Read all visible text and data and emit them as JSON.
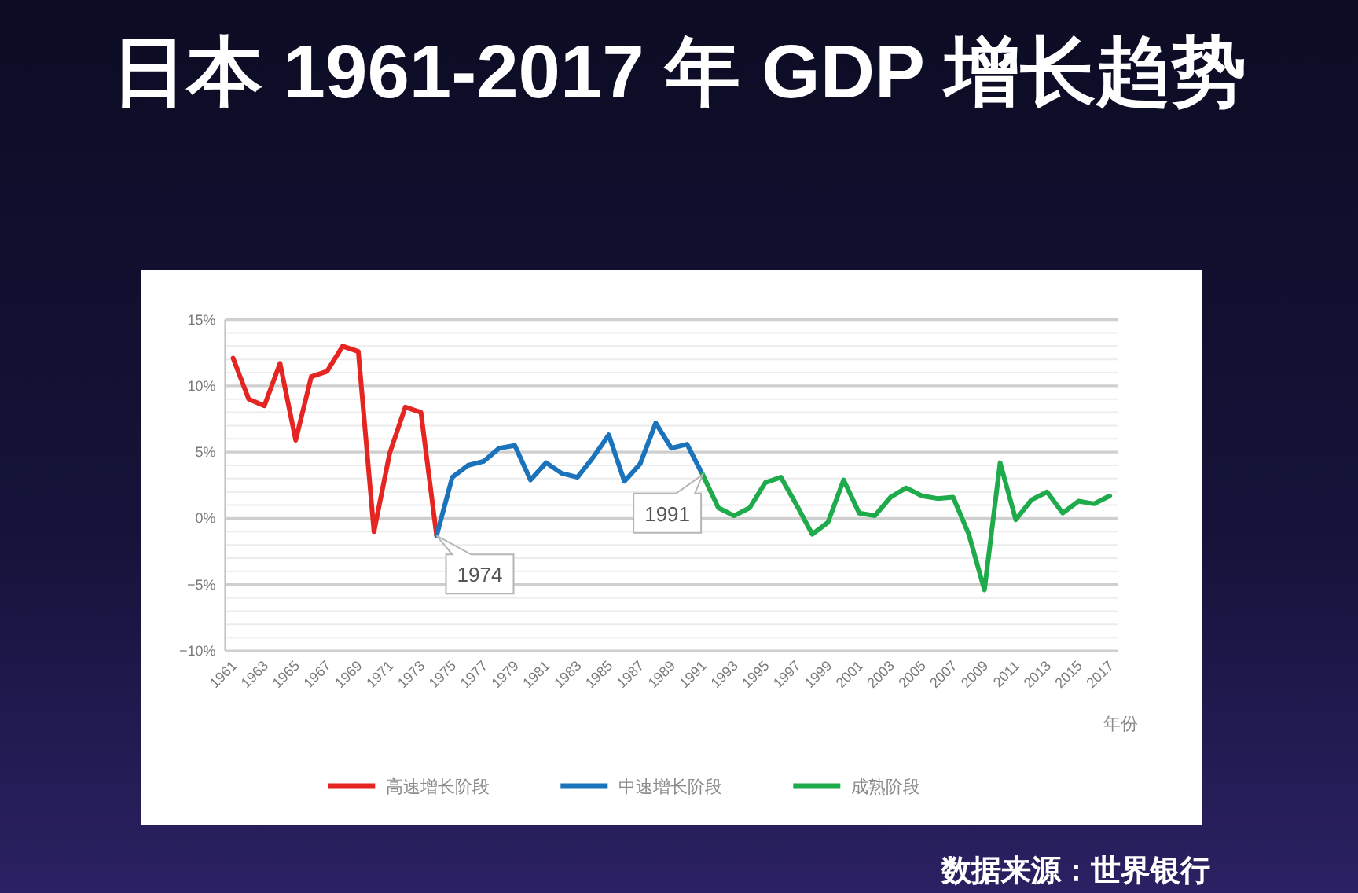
{
  "chart_data": {
    "type": "line",
    "title": "日本 1961-2017 年 GDP 增长趋势",
    "xlabel": "年份",
    "annotations": [
      {
        "text": "1974",
        "x": 1974,
        "y": -1.3
      },
      {
        "text": "1991",
        "x": 1991,
        "y": 3.3
      },
      "数据来源：世界银行"
    ],
    "series": [
      {
        "name": "高速增长阶段",
        "color": "#e52521",
        "x": [
          1961,
          1962,
          1963,
          1964,
          1965,
          1966,
          1967,
          1968,
          1969,
          1970,
          1971,
          1972,
          1973,
          1974
        ],
        "values": [
          12.1,
          9.0,
          8.5,
          11.7,
          5.9,
          10.7,
          11.1,
          13.0,
          12.6,
          -1.0,
          4.9,
          8.4,
          8.0,
          -1.3
        ]
      },
      {
        "name": "中速增长阶段",
        "color": "#1a73bb",
        "x": [
          1974,
          1975,
          1976,
          1977,
          1978,
          1979,
          1980,
          1981,
          1982,
          1983,
          1984,
          1985,
          1986,
          1987,
          1988,
          1989,
          1990,
          1991
        ],
        "values": [
          -1.3,
          3.1,
          4.0,
          4.3,
          5.3,
          5.5,
          2.9,
          4.2,
          3.4,
          3.1,
          4.6,
          6.3,
          2.8,
          4.1,
          7.2,
          5.3,
          5.6,
          3.3
        ]
      },
      {
        "name": "成熟阶段",
        "color": "#1fab4b",
        "x": [
          1991,
          1992,
          1993,
          1994,
          1995,
          1996,
          1997,
          1998,
          1999,
          2000,
          2001,
          2002,
          2003,
          2004,
          2005,
          2006,
          2007,
          2008,
          2009,
          2010,
          2011,
          2012,
          2013,
          2014,
          2015,
          2016,
          2017
        ],
        "values": [
          3.3,
          0.8,
          0.2,
          0.8,
          2.7,
          3.1,
          1.0,
          -1.2,
          -0.3,
          2.9,
          0.4,
          0.2,
          1.6,
          2.3,
          1.7,
          1.5,
          1.6,
          -1.2,
          -5.4,
          4.2,
          -0.1,
          1.4,
          2.0,
          0.4,
          1.3,
          1.1,
          1.7
        ]
      }
    ],
    "xlim": [
      1960.5,
      2017.5
    ],
    "xticks": [
      1961,
      1963,
      1965,
      1967,
      1969,
      1971,
      1973,
      1975,
      1977,
      1979,
      1981,
      1983,
      1985,
      1987,
      1989,
      1991,
      1993,
      1995,
      1997,
      1999,
      2001,
      2003,
      2005,
      2007,
      2009,
      2011,
      2013,
      2015,
      2017
    ],
    "ylim": [
      -10,
      15
    ],
    "yticks": [
      {
        "value": -10,
        "label": "−10%"
      },
      {
        "value": -9,
        "label": null
      },
      {
        "value": -8,
        "label": null
      },
      {
        "value": -7,
        "label": null
      },
      {
        "value": -6,
        "label": null
      },
      {
        "value": -5,
        "label": "−5%"
      },
      {
        "value": -4,
        "label": null
      },
      {
        "value": -3,
        "label": null
      },
      {
        "value": -2,
        "label": null
      },
      {
        "value": -1,
        "label": null
      },
      {
        "value": 0,
        "label": "0%"
      },
      {
        "value": 1,
        "label": null
      },
      {
        "value": 2,
        "label": null
      },
      {
        "value": 3,
        "label": null
      },
      {
        "value": 4,
        "label": null
      },
      {
        "value": 5,
        "label": "5%"
      },
      {
        "value": 6,
        "label": null
      },
      {
        "value": 7,
        "label": null
      },
      {
        "value": 8,
        "label": null
      },
      {
        "value": 9,
        "label": null
      },
      {
        "value": 10,
        "label": "10%"
      },
      {
        "value": 11,
        "label": null
      },
      {
        "value": 12,
        "label": null
      },
      {
        "value": 13,
        "label": null
      },
      {
        "value": 14,
        "label": null
      },
      {
        "value": 15,
        "label": "15%"
      }
    ],
    "grid": "y",
    "legend": "bottom"
  }
}
